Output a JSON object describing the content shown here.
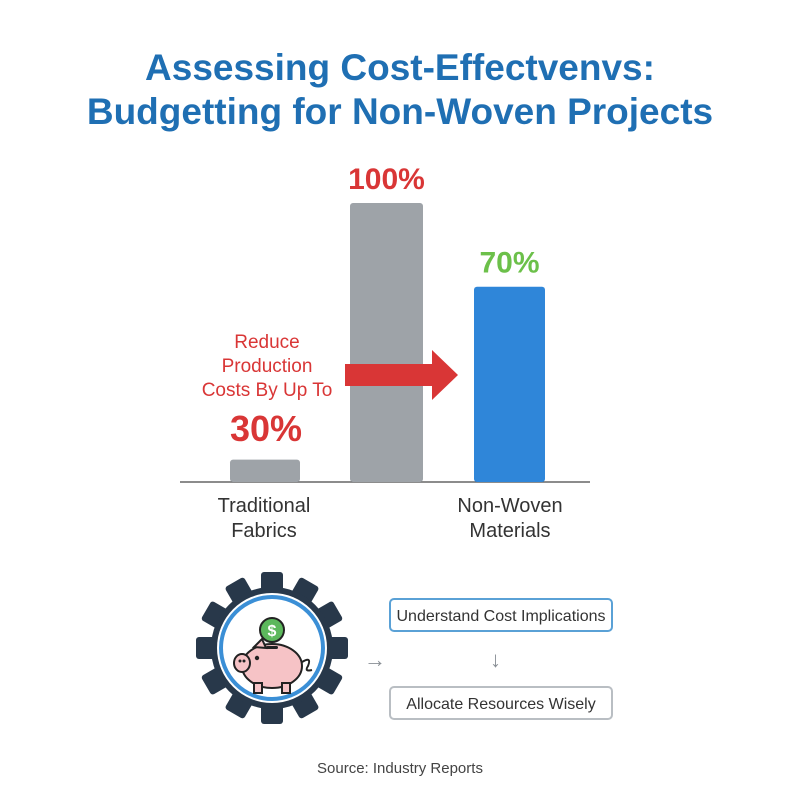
{
  "title_line1": "Assessing Cost-Effectvenvs:",
  "title_line2": "Budgetting for Non-Woven Projects",
  "colors": {
    "title": "#1f6fb3",
    "traditional_bar": "#9ea3a8",
    "nonwoven_bar": "#2f86d9",
    "accent_red": "#d93636",
    "accent_green": "#6cc04a"
  },
  "chart_data": {
    "type": "bar",
    "bars": [
      {
        "category_group": "Traditional Fabrics",
        "value": 8,
        "label": "",
        "color": "#9ea3a8"
      },
      {
        "category_group": "Traditional Fabrics",
        "value": 100,
        "label": "100%",
        "color": "#9ea3a8"
      },
      {
        "category_group": "Non-Woven Materials",
        "value": 70,
        "label": "70%",
        "color": "#2f86d9"
      }
    ],
    "categories_line1": [
      "Traditional",
      "Non-Woven"
    ],
    "categories_line2": [
      "Fabrics",
      "Materials"
    ],
    "ylim": [
      0,
      100
    ],
    "grid": false,
    "annotation": {
      "lines": [
        "Reduce",
        "Production",
        "Costs By Up To"
      ],
      "value": "30%",
      "arrow": "right"
    }
  },
  "process": {
    "icon": "gear-piggy-bank-icon",
    "step1": "Understand Cost Implications",
    "step2": "Allocate Resources Wisely"
  },
  "source": "Source: Industry Reports"
}
